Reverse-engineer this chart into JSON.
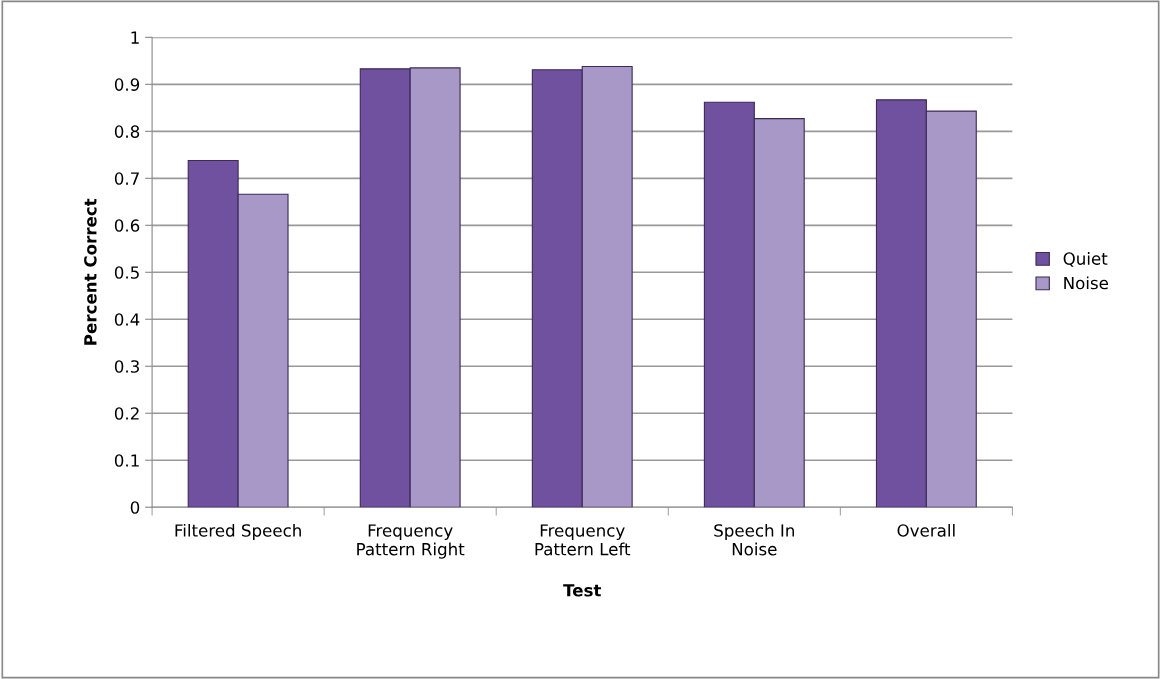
{
  "chart_data": {
    "type": "bar",
    "xlabel": "Test",
    "ylabel": "Percent Correct",
    "categories": [
      "Filtered Speech",
      "Frequency\nPattern Right",
      "Frequency\nPattern Left",
      "Speech In\nNoise",
      "Overall"
    ],
    "series": [
      {
        "name": "Quiet",
        "color": "#7051a0",
        "values": [
          0.738,
          0.933,
          0.931,
          0.862,
          0.867
        ]
      },
      {
        "name": "Noise",
        "color": "#a898c8",
        "values": [
          0.666,
          0.935,
          0.938,
          0.827,
          0.843
        ]
      }
    ],
    "ylim": [
      0,
      1
    ],
    "yticks": [
      0,
      0.1,
      0.2,
      0.3,
      0.4,
      0.5,
      0.6,
      0.7,
      0.8,
      0.9,
      1
    ],
    "grid": "y",
    "legend": "right"
  }
}
